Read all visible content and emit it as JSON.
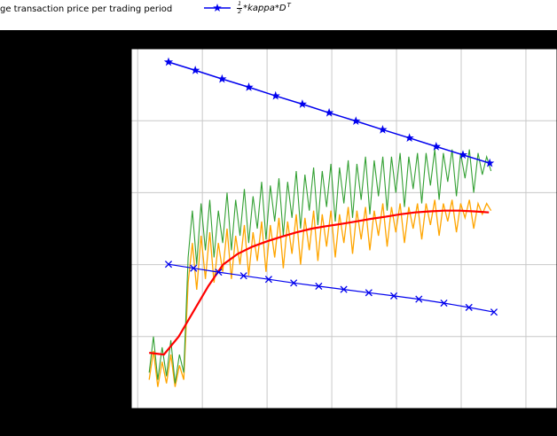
{
  "legend": {
    "entries": [
      {
        "label": "ge transaction price per trading period"
      },
      {
        "numerator": "1",
        "denominator": "2",
        "body": "*kappa*D",
        "sup": "T"
      }
    ]
  },
  "colors": {
    "blue": "#0000ee",
    "green": "#33a033",
    "orange": "#ffa500",
    "red": "#ff0000",
    "grid": "#c8c8c8",
    "plot_bg": "#ffffff",
    "figure_bg": "#000000",
    "legend_bg": "#ffffff",
    "text": "#000000"
  },
  "chart_data": {
    "type": "line",
    "title": "",
    "xlabel": "",
    "ylabel": "",
    "xlim": [
      0,
      1
    ],
    "ylim": [
      0,
      1
    ],
    "grid": true,
    "x_gridlines": [
      0.015,
      0.167,
      0.319,
      0.471,
      0.623,
      0.775,
      0.927
    ],
    "y_gridlines": [
      0.2,
      0.4,
      0.6,
      0.8
    ],
    "legend_position": "top, outside axes (figure legend, partially cropped)",
    "note": "Axis tick labels are cropped outside the visible image; values are in normalized axes units (0-1 of visible plot area).",
    "series": [
      {
        "id": "avg-transaction-price-orange",
        "name": "average transaction price (orange noisy)",
        "color": "#ffa500",
        "width": 1.3,
        "marker": "none",
        "x_start": 0.042,
        "x_end": 0.845,
        "values": [
          0.08,
          0.16,
          0.06,
          0.13,
          0.07,
          0.15,
          0.06,
          0.12,
          0.08,
          0.35,
          0.46,
          0.33,
          0.48,
          0.36,
          0.49,
          0.35,
          0.46,
          0.38,
          0.5,
          0.36,
          0.48,
          0.4,
          0.51,
          0.37,
          0.49,
          0.41,
          0.52,
          0.38,
          0.51,
          0.42,
          0.53,
          0.39,
          0.52,
          0.43,
          0.54,
          0.4,
          0.53,
          0.44,
          0.55,
          0.41,
          0.54,
          0.45,
          0.55,
          0.42,
          0.54,
          0.46,
          0.56,
          0.43,
          0.55,
          0.47,
          0.56,
          0.44,
          0.55,
          0.48,
          0.57,
          0.45,
          0.56,
          0.49,
          0.57,
          0.46,
          0.56,
          0.5,
          0.57,
          0.47,
          0.57,
          0.51,
          0.58,
          0.48,
          0.57,
          0.52,
          0.58,
          0.49,
          0.57,
          0.53,
          0.58,
          0.5,
          0.57,
          0.54,
          0.57,
          0.55
        ]
      },
      {
        "id": "avg-transaction-price-green",
        "name": "average transaction price (green noisy)",
        "color": "#33a033",
        "width": 1.1,
        "marker": "none",
        "x_start": 0.042,
        "x_end": 0.845,
        "values": [
          0.1,
          0.2,
          0.08,
          0.17,
          0.09,
          0.19,
          0.07,
          0.15,
          0.1,
          0.42,
          0.55,
          0.4,
          0.57,
          0.44,
          0.58,
          0.42,
          0.55,
          0.46,
          0.6,
          0.44,
          0.58,
          0.48,
          0.61,
          0.46,
          0.59,
          0.5,
          0.63,
          0.47,
          0.62,
          0.52,
          0.64,
          0.48,
          0.63,
          0.53,
          0.66,
          0.5,
          0.65,
          0.55,
          0.67,
          0.51,
          0.66,
          0.56,
          0.68,
          0.52,
          0.67,
          0.57,
          0.69,
          0.53,
          0.68,
          0.58,
          0.7,
          0.54,
          0.69,
          0.59,
          0.7,
          0.55,
          0.7,
          0.6,
          0.71,
          0.56,
          0.7,
          0.61,
          0.71,
          0.57,
          0.71,
          0.62,
          0.72,
          0.58,
          0.71,
          0.63,
          0.72,
          0.59,
          0.71,
          0.64,
          0.72,
          0.6,
          0.71,
          0.65,
          0.7,
          0.66
        ]
      },
      {
        "id": "running-average-red",
        "name": "smoothed average (red)",
        "color": "#ff0000",
        "width": 2.2,
        "marker": "none",
        "x_start": 0.042,
        "x_end": 0.84,
        "values": [
          0.155,
          0.15,
          0.2,
          0.27,
          0.34,
          0.4,
          0.43,
          0.45,
          0.465,
          0.478,
          0.49,
          0.5,
          0.507,
          0.513,
          0.52,
          0.527,
          0.533,
          0.54,
          0.545,
          0.548,
          0.55,
          0.55,
          0.548,
          0.545
        ]
      },
      {
        "id": "half-kappa-dt-lower",
        "name": "blue line with x markers",
        "color": "#0000ee",
        "width": 1.2,
        "marker": "x",
        "x_start": 0.0875,
        "x_end": 0.852,
        "values": [
          0.401,
          0.39,
          0.379,
          0.369,
          0.359,
          0.349,
          0.34,
          0.331,
          0.322,
          0.313,
          0.304,
          0.293,
          0.281,
          0.268
        ]
      },
      {
        "id": "half-kappa-dt-upper",
        "name": "1/2*kappa*D^T (blue line with star markers)",
        "color": "#0000ee",
        "width": 1.5,
        "marker": "star",
        "x_start": 0.0875,
        "x_end": 0.842,
        "values": [
          0.963,
          0.94,
          0.916,
          0.893,
          0.869,
          0.846,
          0.822,
          0.799,
          0.775,
          0.752,
          0.728,
          0.705,
          0.682
        ]
      }
    ]
  }
}
